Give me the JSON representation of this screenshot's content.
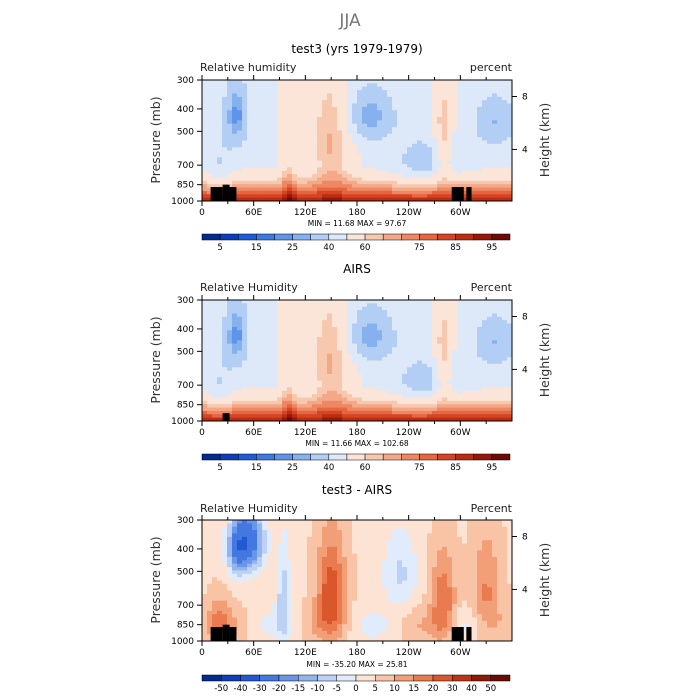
{
  "figure": {
    "season": "JJA"
  },
  "chart_data": [
    {
      "type": "heatmap",
      "title": "test3 (yrs 1979-1979)",
      "variable": "Relative humidity",
      "units": "percent",
      "minmax": "MIN =   11.68   MAX =   97.67",
      "ylabel": "Pressure (mb)",
      "ylabel_right": "Height (km)",
      "xlim": [
        0,
        360
      ],
      "x_ticks": [
        "0",
        "60E",
        "120E",
        "180",
        "120W",
        "60W"
      ],
      "x_tick_values": [
        0,
        60,
        120,
        180,
        240,
        300
      ],
      "y_ticks": [
        "300",
        "400",
        "500",
        "700",
        "850",
        "1000"
      ],
      "y_tick_values": [
        300,
        400,
        500,
        700,
        850,
        1000
      ],
      "height_ticks": [
        "8",
        "4"
      ],
      "height_tick_values": [
        8,
        4
      ],
      "colorbar_levels": [
        5,
        10,
        15,
        20,
        25,
        30,
        40,
        50,
        60,
        65,
        70,
        75,
        80,
        85,
        90,
        95
      ],
      "colorbar_labels": [
        "5",
        "15",
        "25",
        "40",
        "60",
        "75",
        "85",
        "95"
      ],
      "palette": "relhum",
      "dry_regions": [
        [
          195,
          215
        ],
        [
          240,
          310
        ],
        [
          305,
          325
        ]
      ],
      "terrain": [
        {
          "x0": 10,
          "x1": 24,
          "p": 870
        },
        {
          "x0": 24,
          "x1": 32,
          "p": 850
        },
        {
          "x0": 32,
          "x1": 40,
          "p": 870
        },
        {
          "x0": 290,
          "x1": 304,
          "p": 870
        },
        {
          "x0": 307,
          "x1": 313,
          "p": 870
        }
      ]
    },
    {
      "type": "heatmap",
      "title": "AIRS",
      "variable": "Relative Humidity",
      "units": "Percent",
      "minmax": "MIN =   11.66   MAX =  102.68",
      "ylabel": "Pressure (mb)",
      "ylabel_right": "Height (km)",
      "xlim": [
        0,
        360
      ],
      "x_ticks": [
        "0",
        "60E",
        "120E",
        "180",
        "120W",
        "60W"
      ],
      "x_tick_values": [
        0,
        60,
        120,
        180,
        240,
        300
      ],
      "y_ticks": [
        "300",
        "400",
        "500",
        "700",
        "850",
        "1000"
      ],
      "y_tick_values": [
        300,
        400,
        500,
        700,
        850,
        1000
      ],
      "height_ticks": [
        "8",
        "4"
      ],
      "height_tick_values": [
        8,
        4
      ],
      "colorbar_levels": [
        5,
        10,
        15,
        20,
        25,
        30,
        40,
        50,
        60,
        65,
        70,
        75,
        80,
        85,
        90,
        95
      ],
      "colorbar_labels": [
        "5",
        "15",
        "25",
        "40",
        "60",
        "75",
        "85",
        "95"
      ],
      "palette": "relhum",
      "dry_regions": [
        [
          195,
          215
        ],
        [
          240,
          310
        ],
        [
          305,
          325
        ]
      ],
      "terrain": [
        {
          "x0": 24,
          "x1": 32,
          "p": 925
        }
      ]
    },
    {
      "type": "heatmap",
      "title": "test3 - AIRS",
      "variable": "Relative Humidity",
      "units": "Percent",
      "minmax": "MIN =  -35.20   MAX =   25.81",
      "ylabel": "Pressure (mb)",
      "ylabel_right": "Height (km)",
      "xlim": [
        0,
        360
      ],
      "x_ticks": [
        "0",
        "60E",
        "120E",
        "180",
        "120W",
        "60W"
      ],
      "x_tick_values": [
        0,
        60,
        120,
        180,
        240,
        300
      ],
      "y_ticks": [
        "300",
        "400",
        "500",
        "700",
        "850",
        "1000"
      ],
      "y_tick_values": [
        300,
        400,
        500,
        700,
        850,
        1000
      ],
      "height_ticks": [
        "8",
        "4"
      ],
      "height_tick_values": [
        8,
        4
      ],
      "colorbar_levels": [
        -50,
        -40,
        -30,
        -20,
        -15,
        -10,
        -5,
        0,
        5,
        10,
        15,
        20,
        30,
        40,
        50
      ],
      "colorbar_labels": [
        "-50",
        "-40",
        "-30",
        "-20",
        "-15",
        "-10",
        "-5",
        "0",
        "5",
        "10",
        "15",
        "20",
        "30",
        "40",
        "50"
      ],
      "palette": "diff",
      "dry_regions": [
        [
          40,
          95
        ],
        [
          240,
          310
        ]
      ],
      "terrain": [
        {
          "x0": 10,
          "x1": 24,
          "p": 870
        },
        {
          "x0": 24,
          "x1": 32,
          "p": 850
        },
        {
          "x0": 32,
          "x1": 40,
          "p": 870
        },
        {
          "x0": 290,
          "x1": 304,
          "p": 870
        },
        {
          "x0": 307,
          "x1": 313,
          "p": 870
        }
      ]
    }
  ]
}
